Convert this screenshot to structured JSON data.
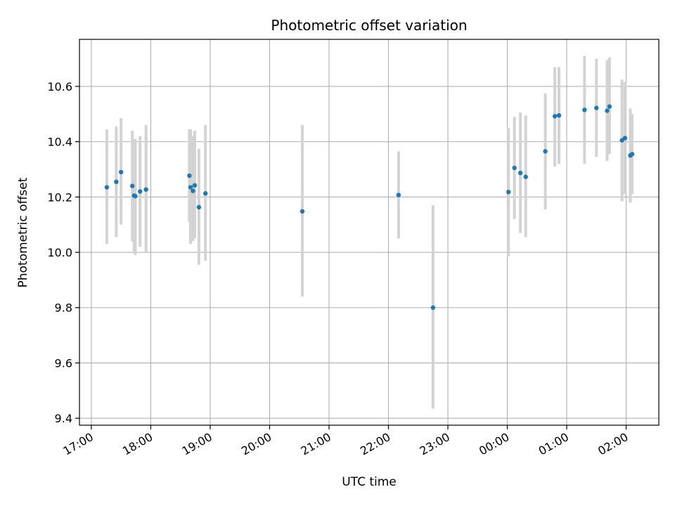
{
  "chart_data": {
    "type": "scatter",
    "title": "Photometric offset variation",
    "xlabel": "UTC time",
    "ylabel": "Photometric offset",
    "x_unit": "UTC time of day (hours; values past 24 are after midnight)",
    "xlim": [
      16.8,
      26.55
    ],
    "ylim": [
      9.375,
      10.77
    ],
    "grid": true,
    "x_ticks": [
      {
        "value": 17,
        "label": "17:00"
      },
      {
        "value": 18,
        "label": "18:00"
      },
      {
        "value": 19,
        "label": "19:00"
      },
      {
        "value": 20,
        "label": "20:00"
      },
      {
        "value": 21,
        "label": "21:00"
      },
      {
        "value": 22,
        "label": "22:00"
      },
      {
        "value": 23,
        "label": "23:00"
      },
      {
        "value": 24,
        "label": "00:00"
      },
      {
        "value": 25,
        "label": "01:00"
      },
      {
        "value": 26,
        "label": "02:00"
      }
    ],
    "y_ticks": [
      {
        "value": 9.4,
        "label": "9.4"
      },
      {
        "value": 9.6,
        "label": "9.6"
      },
      {
        "value": 9.8,
        "label": "9.8"
      },
      {
        "value": 10.0,
        "label": "10.0"
      },
      {
        "value": 10.2,
        "label": "10.2"
      },
      {
        "value": 10.4,
        "label": "10.4"
      },
      {
        "value": 10.6,
        "label": "10.6"
      }
    ],
    "point_color": "#1f77b4",
    "errorbar_color": "#d3d3d3",
    "points": [
      {
        "x": 17.26,
        "y": 10.235,
        "ylow": 10.03,
        "yhigh": 10.445
      },
      {
        "x": 17.42,
        "y": 10.255,
        "ylow": 10.055,
        "yhigh": 10.455
      },
      {
        "x": 17.5,
        "y": 10.29,
        "ylow": 10.1,
        "yhigh": 10.485
      },
      {
        "x": 17.69,
        "y": 10.24,
        "ylow": 10.04,
        "yhigh": 10.44
      },
      {
        "x": 17.72,
        "y": 10.205,
        "ylow": 10.0,
        "yhigh": 10.41
      },
      {
        "x": 17.74,
        "y": 10.203,
        "ylow": 9.99,
        "yhigh": 10.41
      },
      {
        "x": 17.82,
        "y": 10.22,
        "ylow": 10.02,
        "yhigh": 10.42
      },
      {
        "x": 17.92,
        "y": 10.227,
        "ylow": 10.0,
        "yhigh": 10.46
      },
      {
        "x": 18.65,
        "y": 10.277,
        "ylow": 10.11,
        "yhigh": 10.445
      },
      {
        "x": 18.67,
        "y": 10.235,
        "ylow": 10.03,
        "yhigh": 10.445
      },
      {
        "x": 18.71,
        "y": 10.222,
        "ylow": 10.04,
        "yhigh": 10.42
      },
      {
        "x": 18.74,
        "y": 10.242,
        "ylow": 10.05,
        "yhigh": 10.44
      },
      {
        "x": 18.81,
        "y": 10.163,
        "ylow": 9.955,
        "yhigh": 10.375
      },
      {
        "x": 18.92,
        "y": 10.213,
        "ylow": 9.97,
        "yhigh": 10.46
      },
      {
        "x": 20.55,
        "y": 10.148,
        "ylow": 9.84,
        "yhigh": 10.46
      },
      {
        "x": 22.17,
        "y": 10.207,
        "ylow": 10.05,
        "yhigh": 10.365
      },
      {
        "x": 22.75,
        "y": 9.8,
        "ylow": 9.435,
        "yhigh": 10.17
      },
      {
        "x": 24.02,
        "y": 10.218,
        "ylow": 9.985,
        "yhigh": 10.45
      },
      {
        "x": 24.12,
        "y": 10.305,
        "ylow": 10.12,
        "yhigh": 10.49
      },
      {
        "x": 24.22,
        "y": 10.287,
        "ylow": 10.07,
        "yhigh": 10.505
      },
      {
        "x": 24.31,
        "y": 10.273,
        "ylow": 10.055,
        "yhigh": 10.495
      },
      {
        "x": 24.64,
        "y": 10.365,
        "ylow": 10.155,
        "yhigh": 10.575
      },
      {
        "x": 24.8,
        "y": 10.492,
        "ylow": 10.31,
        "yhigh": 10.67
      },
      {
        "x": 24.87,
        "y": 10.495,
        "ylow": 10.32,
        "yhigh": 10.67
      },
      {
        "x": 25.3,
        "y": 10.515,
        "ylow": 10.32,
        "yhigh": 10.71
      },
      {
        "x": 25.5,
        "y": 10.522,
        "ylow": 10.345,
        "yhigh": 10.7
      },
      {
        "x": 25.68,
        "y": 10.512,
        "ylow": 10.33,
        "yhigh": 10.695
      },
      {
        "x": 25.72,
        "y": 10.527,
        "ylow": 10.355,
        "yhigh": 10.705
      },
      {
        "x": 25.93,
        "y": 10.405,
        "ylow": 10.185,
        "yhigh": 10.625
      },
      {
        "x": 25.98,
        "y": 10.413,
        "ylow": 10.21,
        "yhigh": 10.615
      },
      {
        "x": 26.07,
        "y": 10.35,
        "ylow": 10.18,
        "yhigh": 10.52
      },
      {
        "x": 26.1,
        "y": 10.355,
        "ylow": 10.21,
        "yhigh": 10.5
      }
    ]
  }
}
